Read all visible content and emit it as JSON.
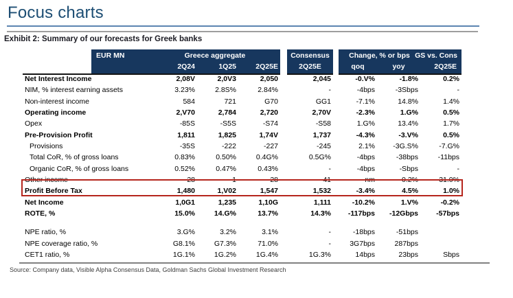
{
  "page": {
    "title": "Focus charts",
    "exhibit_title": "Exhibit 2: Summary of our forecasts for Greek banks",
    "source": "Source: Company data, Visible Alpha Consensus Data, Goldman Sachs Global Investment Research"
  },
  "colors": {
    "title_blue": "#1D4E74",
    "header_navy": "#17375E",
    "highlight_red": "#B5251C",
    "rule_blue": "#5B84B1",
    "rule_gray": "#9E9E9E"
  },
  "table": {
    "corner_label": "EUR MN",
    "groups": {
      "greece": "Greece aggregate",
      "consensus": "Consensus",
      "change": "Change, % or bps",
      "gs_vs_cons": "GS vs. Cons"
    },
    "subheaders": {
      "q1": "2Q24",
      "q2": "1Q25",
      "q3": "2Q25E",
      "cons": "2Q25E",
      "qoq": "qoq",
      "yoy": "yoy",
      "gs": "2Q25E"
    },
    "rows": [
      {
        "label": "Net Interest Income",
        "bold": true,
        "values": [
          "2,08V",
          "2,0V3",
          "2,050",
          "2,045",
          "-0.V%",
          "-1.8%",
          "0.2%"
        ]
      },
      {
        "label": "NIM, % interest earning assets",
        "values": [
          "3.23%",
          "2.8S%",
          "2.84%",
          "-",
          "-4bps",
          "-3Sbps",
          "-"
        ]
      },
      {
        "label": "Non-interest income",
        "values": [
          "584",
          "721",
          "G70",
          "GG1",
          "-7.1%",
          "14.8%",
          "1.4%"
        ]
      },
      {
        "label": "Operating income",
        "bold": true,
        "values": [
          "2,V70",
          "2,784",
          "2,720",
          "2,70V",
          "-2.3%",
          "1.G%",
          "0.5%"
        ]
      },
      {
        "label": "Opex",
        "values": [
          "-85S",
          "-S5S",
          "-S74",
          "-S58",
          "1.G%",
          "13.4%",
          "1.7%"
        ]
      },
      {
        "label": "Pre-Provision Profit",
        "bold": true,
        "values": [
          "1,811",
          "1,825",
          "1,74V",
          "1,737",
          "-4.3%",
          "-3.V%",
          "0.5%"
        ]
      },
      {
        "label": "Provisions",
        "indent": true,
        "values": [
          "-35S",
          "-222",
          "-227",
          "-245",
          "2.1%",
          "-3G.S%",
          "-7.G%"
        ]
      },
      {
        "label": "Total CoR, % of gross loans",
        "indent": true,
        "values": [
          "0.83%",
          "0.50%",
          "0.4G%",
          "0.5G%",
          "-4bps",
          "-38bps",
          "-11bps"
        ]
      },
      {
        "label": "Organic CoR, % of gross loans",
        "indent": true,
        "values": [
          "0.52%",
          "0.47%",
          "0.43%",
          "-",
          "-4bps",
          "-Sbps",
          "-"
        ]
      },
      {
        "label": "Other income",
        "values": [
          "28",
          "-1",
          "28",
          "41",
          "nm",
          "-0.2%",
          "-31.0%"
        ]
      },
      {
        "label": "Profit Before Tax",
        "bold": true,
        "highlight": true,
        "values": [
          "1,480",
          "1,V02",
          "1,547",
          "1,532",
          "-3.4%",
          "4.5%",
          "1.0%"
        ]
      },
      {
        "label": "Net Income",
        "bold": true,
        "values": [
          "1,0G1",
          "1,235",
          "1,10G",
          "1,111",
          "-10.2%",
          "1.V%",
          "-0.2%"
        ]
      },
      {
        "label": "ROTE, %",
        "bold": true,
        "values": [
          "15.0%",
          "14.G%",
          "13.7%",
          "14.3%",
          "-117bps",
          "-12Gbps",
          "-57bps"
        ]
      },
      {
        "blank": true
      },
      {
        "label": "NPE ratio, %",
        "values": [
          "3.G%",
          "3.2%",
          "3.1%",
          "-",
          "-18bps",
          "-51bps",
          ""
        ]
      },
      {
        "label": "NPE coverage ratio, %",
        "values": [
          "G8.1%",
          "G7.3%",
          "71.0%",
          "-",
          "3G7bps",
          "287bps",
          ""
        ]
      },
      {
        "label": "CET1 ratio, %",
        "values": [
          "1G.1%",
          "1G.2%",
          "1G.4%",
          "1G.3%",
          "14bps",
          "23bps",
          "Sbps"
        ]
      }
    ]
  }
}
